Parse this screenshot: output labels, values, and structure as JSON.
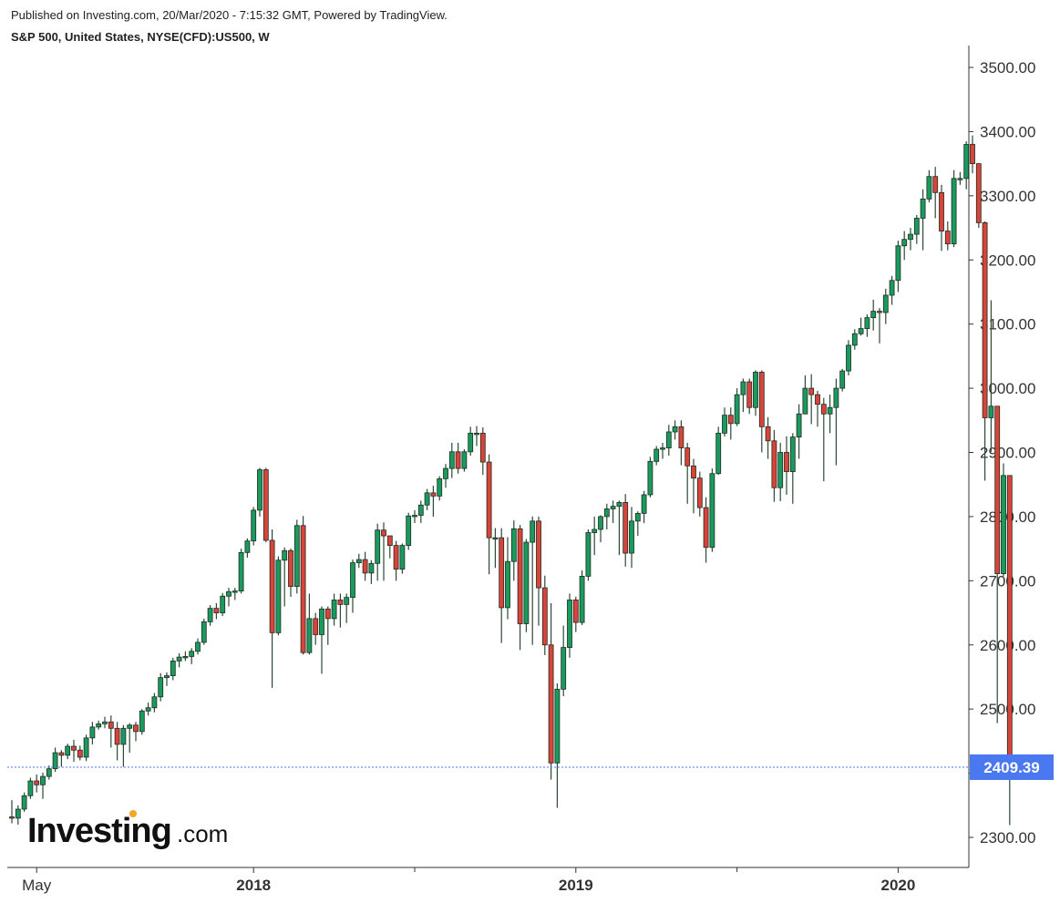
{
  "header": {
    "published": "Published on Investing.com, 20/Mar/2020 - 7:15:32 GMT, Powered by TradingView.",
    "instrument": "S&P 500, United States, NYSE(CFD):US500, W"
  },
  "logo": {
    "main": "Investing",
    "suffix": ".com",
    "dot_color": "#f5a623"
  },
  "colors": {
    "up": "#1a9a5c",
    "down": "#d9443a",
    "wick": "#2d4a37",
    "last_price_bg": "#4a78f0",
    "last_price_line": "#4a78f0"
  },
  "chart_data": {
    "type": "candlestick",
    "interval": "W",
    "ylim": [
      2250,
      3550
    ],
    "y_ticks": [
      2300,
      2400,
      2500,
      2600,
      2700,
      2800,
      2900,
      3000,
      3100,
      3200,
      3300,
      3400,
      3500
    ],
    "y_tick_labels": [
      "2300.00",
      "2400.00",
      "2500.00",
      "2600.00",
      "2700.00",
      "2800.00",
      "2900.00",
      "3000.00",
      "3100.00",
      "3200.00",
      "3300.00",
      "3400.00",
      "3500.00"
    ],
    "x_labels": [
      {
        "label": "May",
        "bold": false,
        "bar_index": 4
      },
      {
        "label": "2018",
        "bold": true,
        "bar_index": 39
      },
      {
        "label": "2019",
        "bold": true,
        "bar_index": 91
      },
      {
        "label": "2020",
        "bold": true,
        "bar_index": 143
      }
    ],
    "last_price": 2409.39,
    "last_price_label": "2409.39",
    "candles": [
      [
        2332,
        2330,
        2358,
        2322
      ],
      [
        2330,
        2344,
        2350,
        2320
      ],
      [
        2344,
        2365,
        2370,
        2340
      ],
      [
        2365,
        2388,
        2393,
        2360
      ],
      [
        2388,
        2382,
        2398,
        2370
      ],
      [
        2382,
        2395,
        2401,
        2360
      ],
      [
        2395,
        2407,
        2412,
        2390
      ],
      [
        2407,
        2432,
        2440,
        2402
      ],
      [
        2432,
        2428,
        2436,
        2410
      ],
      [
        2428,
        2442,
        2446,
        2422
      ],
      [
        2442,
        2436,
        2452,
        2418
      ],
      [
        2436,
        2425,
        2443,
        2420
      ],
      [
        2425,
        2455,
        2460,
        2419
      ],
      [
        2455,
        2472,
        2480,
        2445
      ],
      [
        2472,
        2477,
        2482,
        2468
      ],
      [
        2477,
        2480,
        2488,
        2470
      ],
      [
        2480,
        2470,
        2490,
        2440
      ],
      [
        2470,
        2445,
        2480,
        2420
      ],
      [
        2445,
        2470,
        2475,
        2410
      ],
      [
        2470,
        2475,
        2478,
        2432
      ],
      [
        2475,
        2465,
        2480,
        2450
      ],
      [
        2465,
        2497,
        2500,
        2460
      ],
      [
        2497,
        2502,
        2510,
        2490
      ],
      [
        2502,
        2519,
        2525,
        2495
      ],
      [
        2519,
        2549,
        2556,
        2512
      ],
      [
        2549,
        2552,
        2557,
        2536
      ],
      [
        2552,
        2575,
        2580,
        2545
      ],
      [
        2575,
        2581,
        2587,
        2565
      ],
      [
        2581,
        2582,
        2590,
        2575
      ],
      [
        2582,
        2590,
        2595,
        2570
      ],
      [
        2590,
        2604,
        2610,
        2585
      ],
      [
        2604,
        2636,
        2641,
        2600
      ],
      [
        2636,
        2657,
        2662,
        2630
      ],
      [
        2657,
        2650,
        2665,
        2640
      ],
      [
        2650,
        2676,
        2681,
        2645
      ],
      [
        2676,
        2683,
        2689,
        2660
      ],
      [
        2683,
        2684,
        2689,
        2670
      ],
      [
        2684,
        2744,
        2750,
        2680
      ],
      [
        2744,
        2762,
        2766,
        2736
      ],
      [
        2762,
        2810,
        2815,
        2755
      ],
      [
        2810,
        2873,
        2876,
        2800
      ],
      [
        2873,
        2763,
        2876,
        2760
      ],
      [
        2763,
        2619,
        2780,
        2533
      ],
      [
        2619,
        2732,
        2738,
        2615
      ],
      [
        2732,
        2747,
        2752,
        2660
      ],
      [
        2747,
        2691,
        2750,
        2675
      ],
      [
        2691,
        2786,
        2795,
        2680
      ],
      [
        2786,
        2588,
        2801,
        2585
      ],
      [
        2588,
        2641,
        2680,
        2585
      ],
      [
        2641,
        2616,
        2650,
        2600
      ],
      [
        2616,
        2656,
        2660,
        2555
      ],
      [
        2656,
        2641,
        2660,
        2600
      ],
      [
        2641,
        2670,
        2680,
        2630
      ],
      [
        2670,
        2663,
        2680,
        2627
      ],
      [
        2663,
        2674,
        2680,
        2634
      ],
      [
        2674,
        2728,
        2733,
        2650
      ],
      [
        2728,
        2733,
        2742,
        2720
      ],
      [
        2733,
        2712,
        2745,
        2700
      ],
      [
        2712,
        2727,
        2732,
        2695
      ],
      [
        2727,
        2779,
        2789,
        2700
      ],
      [
        2779,
        2770,
        2791,
        2700
      ],
      [
        2770,
        2755,
        2770,
        2735
      ],
      [
        2755,
        2718,
        2762,
        2700
      ],
      [
        2718,
        2755,
        2758,
        2711
      ],
      [
        2755,
        2801,
        2806,
        2748
      ],
      [
        2801,
        2802,
        2810,
        2790
      ],
      [
        2802,
        2818,
        2825,
        2790
      ],
      [
        2818,
        2837,
        2843,
        2810
      ],
      [
        2837,
        2832,
        2848,
        2800
      ],
      [
        2832,
        2859,
        2863,
        2825
      ],
      [
        2859,
        2875,
        2882,
        2845
      ],
      [
        2875,
        2901,
        2915,
        2860
      ],
      [
        2901,
        2875,
        2915,
        2867
      ],
      [
        2875,
        2901,
        2905,
        2870
      ],
      [
        2901,
        2930,
        2940,
        2895
      ],
      [
        2930,
        2930,
        2941,
        2910
      ],
      [
        2930,
        2885,
        2939,
        2865
      ],
      [
        2885,
        2767,
        2897,
        2710
      ],
      [
        2767,
        2767,
        2782,
        2720
      ],
      [
        2767,
        2658,
        2782,
        2603
      ],
      [
        2658,
        2730,
        2768,
        2640
      ],
      [
        2730,
        2781,
        2794,
        2700
      ],
      [
        2781,
        2633,
        2787,
        2592
      ],
      [
        2633,
        2760,
        2765,
        2620
      ],
      [
        2760,
        2793,
        2800,
        2600
      ],
      [
        2793,
        2689,
        2800,
        2630
      ],
      [
        2689,
        2600,
        2708,
        2584
      ],
      [
        2600,
        2416,
        2665,
        2390
      ],
      [
        2416,
        2531,
        2540,
        2346
      ],
      [
        2531,
        2596,
        2630,
        2520
      ],
      [
        2596,
        2670,
        2680,
        2580
      ],
      [
        2670,
        2635,
        2675,
        2620
      ],
      [
        2635,
        2707,
        2716,
        2631
      ],
      [
        2707,
        2775,
        2780,
        2700
      ],
      [
        2775,
        2780,
        2800,
        2740
      ],
      [
        2780,
        2800,
        2802,
        2760
      ],
      [
        2800,
        2812,
        2820,
        2780
      ],
      [
        2812,
        2816,
        2825,
        2790
      ],
      [
        2816,
        2822,
        2825,
        2740
      ],
      [
        2822,
        2743,
        2835,
        2722
      ],
      [
        2743,
        2793,
        2815,
        2720
      ],
      [
        2793,
        2805,
        2808,
        2770
      ],
      [
        2805,
        2834,
        2840,
        2790
      ],
      [
        2834,
        2886,
        2893,
        2830
      ],
      [
        2886,
        2905,
        2910,
        2880
      ],
      [
        2905,
        2907,
        2915,
        2890
      ],
      [
        2907,
        2932,
        2943,
        2895
      ],
      [
        2932,
        2940,
        2950,
        2920
      ],
      [
        2940,
        2907,
        2950,
        2880
      ],
      [
        2907,
        2879,
        2915,
        2820
      ],
      [
        2879,
        2860,
        2890,
        2805
      ],
      [
        2860,
        2814,
        2870,
        2800
      ],
      [
        2814,
        2752,
        2830,
        2728
      ],
      [
        2752,
        2867,
        2875,
        2745
      ],
      [
        2867,
        2930,
        2940,
        2865
      ],
      [
        2930,
        2958,
        2970,
        2925
      ],
      [
        2958,
        2945,
        2970,
        2920
      ],
      [
        2945,
        2990,
        3000,
        2941
      ],
      [
        2990,
        3010,
        3015,
        2963
      ],
      [
        3010,
        2970,
        3015,
        2960
      ],
      [
        2970,
        3025,
        3028,
        2957
      ],
      [
        3025,
        2940,
        3028,
        2900
      ],
      [
        2940,
        2918,
        2955,
        2890
      ],
      [
        2918,
        2845,
        2935,
        2823
      ],
      [
        2845,
        2900,
        2915,
        2824
      ],
      [
        2900,
        2870,
        2925,
        2834
      ],
      [
        2870,
        2924,
        2930,
        2820
      ],
      [
        2924,
        2960,
        2975,
        2890
      ],
      [
        2960,
        3000,
        3020,
        2960
      ],
      [
        3000,
        2990,
        3022,
        2944
      ],
      [
        2990,
        2975,
        2996,
        2940
      ],
      [
        2975,
        2960,
        2985,
        2855
      ],
      [
        2960,
        2970,
        2990,
        2930
      ],
      [
        2970,
        3000,
        3015,
        2880
      ],
      [
        3000,
        3027,
        3030,
        2995
      ],
      [
        3027,
        3067,
        3075,
        3020
      ],
      [
        3067,
        3085,
        3092,
        3060
      ],
      [
        3085,
        3093,
        3110,
        3082
      ],
      [
        3093,
        3110,
        3115,
        3080
      ],
      [
        3110,
        3120,
        3138,
        3090
      ],
      [
        3120,
        3118,
        3125,
        3070
      ],
      [
        3118,
        3145,
        3155,
        3100
      ],
      [
        3145,
        3168,
        3175,
        3130
      ],
      [
        3168,
        3222,
        3230,
        3150
      ],
      [
        3222,
        3232,
        3245,
        3200
      ],
      [
        3232,
        3240,
        3250,
        3215
      ],
      [
        3240,
        3265,
        3270,
        3225
      ],
      [
        3265,
        3295,
        3310,
        3215
      ],
      [
        3295,
        3330,
        3340,
        3290
      ],
      [
        3330,
        3305,
        3345,
        3265
      ],
      [
        3305,
        3245,
        3317,
        3214
      ],
      [
        3245,
        3225,
        3260,
        3215
      ],
      [
        3225,
        3327,
        3340,
        3220
      ],
      [
        3327,
        3327,
        3337,
        3317
      ],
      [
        3327,
        3380,
        3385,
        3310
      ],
      [
        3380,
        3350,
        3394,
        3335
      ],
      [
        3350,
        3258,
        3260,
        3250
      ],
      [
        3258,
        2954,
        3260,
        2856
      ],
      [
        2954,
        2972,
        3137,
        2901
      ],
      [
        2972,
        2711,
        2883,
        2478
      ],
      [
        2711,
        2864,
        2883,
        2707
      ],
      [
        2864,
        2409,
        2468,
        2319
      ]
    ]
  }
}
